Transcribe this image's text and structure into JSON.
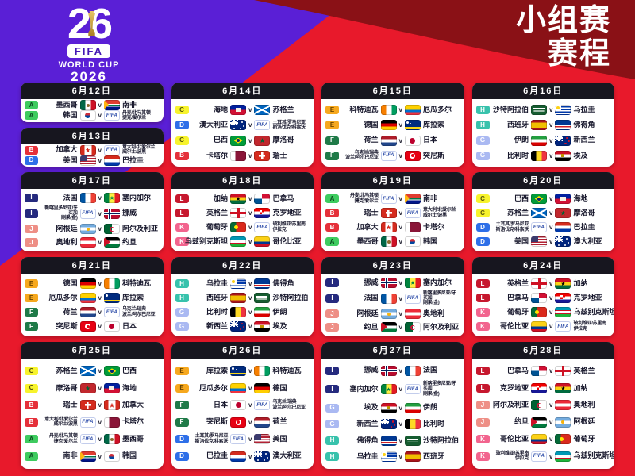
{
  "colors": {
    "red": "#e8192b",
    "purple": "#5a1fd6",
    "maroon": "#8a1116",
    "card_header": "#17161f"
  },
  "header": {
    "title_line1": "小组赛",
    "title_line2": "赛程"
  },
  "logo": {
    "number": "26",
    "fifa": "FIFA",
    "worldcup": "WORLD CUP",
    "year": "2026",
    "trophy_icon": "world-cup-trophy-icon"
  },
  "vs_label": "v",
  "playoff_badge_label": "FIFA",
  "groups": {
    "A": {
      "bg": "#3ecb5f",
      "fg": "#0c4d22"
    },
    "B": {
      "bg": "#e5303a",
      "fg": "#ffffff"
    },
    "C": {
      "bg": "#f7f32c",
      "fg": "#55530a"
    },
    "D": {
      "bg": "#2e6fe8",
      "fg": "#ffffff"
    },
    "E": {
      "bg": "#f6a81e",
      "fg": "#6b4500"
    },
    "F": {
      "bg": "#1f7a48",
      "fg": "#ffffff"
    },
    "G": {
      "bg": "#aab9f2",
      "fg": "#ffffff"
    },
    "H": {
      "bg": "#38c2ac",
      "fg": "#ffffff"
    },
    "I": {
      "bg": "#252a7e",
      "fg": "#ffffff"
    },
    "J": {
      "bg": "#ee8f86",
      "fg": "#ffffff"
    },
    "K": {
      "bg": "#f2648e",
      "fg": "#ffffff"
    },
    "L": {
      "bg": "#c6182e",
      "fg": "#ffffff"
    }
  },
  "cards": [
    {
      "date": "6月12日",
      "matches": [
        {
          "group": "A",
          "home": {
            "name": "墨西哥",
            "flag": "mex"
          },
          "away": {
            "name": "南非",
            "flag": "rsa"
          }
        },
        {
          "group": "A",
          "home": {
            "name": "韩国",
            "flag": "kor"
          },
          "away": {
            "name": "丹麦/北马其顿\n捷克/爱尔兰",
            "flag": "fifa"
          }
        }
      ]
    },
    {
      "date": "6月13日",
      "matches": [
        {
          "group": "B",
          "home": {
            "name": "加拿大",
            "flag": "can"
          },
          "away": {
            "name": "意大利/北爱尔兰\n威尔士/波黑",
            "flag": "fifa"
          }
        },
        {
          "group": "D",
          "home": {
            "name": "美国",
            "flag": "usa"
          },
          "away": {
            "name": "巴拉圭",
            "flag": "par"
          }
        }
      ]
    },
    {
      "date": "6月14日",
      "matches": [
        {
          "group": "C",
          "home": {
            "name": "海地",
            "flag": "hai"
          },
          "away": {
            "name": "苏格兰",
            "flag": "sco"
          }
        },
        {
          "group": "D",
          "home": {
            "name": "澳大利亚",
            "flag": "aus"
          },
          "away": {
            "name": "土耳其/罗马尼亚\n斯洛伐克/科索沃",
            "flag": "fifa"
          }
        },
        {
          "group": "C",
          "home": {
            "name": "巴西",
            "flag": "bra"
          },
          "away": {
            "name": "摩洛哥",
            "flag": "mar"
          }
        },
        {
          "group": "B",
          "home": {
            "name": "卡塔尔",
            "flag": "qat"
          },
          "away": {
            "name": "瑞士",
            "flag": "sui"
          }
        }
      ]
    },
    {
      "date": "6月15日",
      "matches": [
        {
          "group": "E",
          "home": {
            "name": "科特迪瓦",
            "flag": "civ"
          },
          "away": {
            "name": "厄瓜多尔",
            "flag": "ecu"
          }
        },
        {
          "group": "E",
          "home": {
            "name": "德国",
            "flag": "ger"
          },
          "away": {
            "name": "库拉索",
            "flag": "cuw"
          }
        },
        {
          "group": "F",
          "home": {
            "name": "荷兰",
            "flag": "ned"
          },
          "away": {
            "name": "日本",
            "flag": "jpn"
          }
        },
        {
          "group": "F",
          "home": {
            "name": "乌克兰/瑞典\n波兰/阿尔巴尼亚",
            "flag": "fifa"
          },
          "away": {
            "name": "突尼斯",
            "flag": "tun"
          }
        }
      ]
    },
    {
      "date": "6月16日",
      "matches": [
        {
          "group": "H",
          "home": {
            "name": "沙特阿拉伯",
            "flag": "ksa"
          },
          "away": {
            "name": "乌拉圭",
            "flag": "uru"
          }
        },
        {
          "group": "H",
          "home": {
            "name": "西班牙",
            "flag": "esp"
          },
          "away": {
            "name": "佛得角",
            "flag": "cpv"
          }
        },
        {
          "group": "G",
          "home": {
            "name": "伊朗",
            "flag": "irn"
          },
          "away": {
            "name": "新西兰",
            "flag": "nzl"
          }
        },
        {
          "group": "G",
          "home": {
            "name": "比利时",
            "flag": "bel"
          },
          "away": {
            "name": "埃及",
            "flag": "egy"
          }
        }
      ]
    },
    {
      "date": "6月17日",
      "matches": [
        {
          "group": "I",
          "home": {
            "name": "法国",
            "flag": "fra"
          },
          "away": {
            "name": "塞内加尔",
            "flag": "sen"
          }
        },
        {
          "group": "I",
          "home": {
            "name": "新喀里多尼亚/牙买加\n刚果(金)",
            "flag": "fifa"
          },
          "away": {
            "name": "挪威",
            "flag": "nor"
          }
        },
        {
          "group": "J",
          "home": {
            "name": "阿根廷",
            "flag": "arg"
          },
          "away": {
            "name": "阿尔及利亚",
            "flag": "alg"
          }
        },
        {
          "group": "J",
          "home": {
            "name": "奥地利",
            "flag": "aut"
          },
          "away": {
            "name": "约旦",
            "flag": "jor"
          }
        }
      ]
    },
    {
      "date": "6月18日",
      "matches": [
        {
          "group": "L",
          "home": {
            "name": "加纳",
            "flag": "gha"
          },
          "away": {
            "name": "巴拿马",
            "flag": "pan"
          }
        },
        {
          "group": "L",
          "home": {
            "name": "英格兰",
            "flag": "eng"
          },
          "away": {
            "name": "克罗地亚",
            "flag": "cro"
          }
        },
        {
          "group": "K",
          "home": {
            "name": "葡萄牙",
            "flag": "por"
          },
          "away": {
            "name": "玻利维亚/苏里南\n伊拉克",
            "flag": "fifa"
          }
        },
        {
          "group": "K",
          "home": {
            "name": "乌兹别克斯坦",
            "flag": "uzb"
          },
          "away": {
            "name": "哥伦比亚",
            "flag": "col"
          }
        }
      ]
    },
    {
      "date": "6月19日",
      "matches": [
        {
          "group": "A",
          "home": {
            "name": "丹麦/北马其顿\n捷克/爱尔兰",
            "flag": "fifa"
          },
          "away": {
            "name": "南非",
            "flag": "rsa"
          }
        },
        {
          "group": "B",
          "home": {
            "name": "瑞士",
            "flag": "sui"
          },
          "away": {
            "name": "意大利/北爱尔兰\n威尔士/波黑",
            "flag": "fifa"
          }
        },
        {
          "group": "B",
          "home": {
            "name": "加拿大",
            "flag": "can"
          },
          "away": {
            "name": "卡塔尔",
            "flag": "qat"
          }
        },
        {
          "group": "A",
          "home": {
            "name": "墨西哥",
            "flag": "mex"
          },
          "away": {
            "name": "韩国",
            "flag": "kor"
          }
        }
      ]
    },
    {
      "date": "6月20日",
      "matches": [
        {
          "group": "C",
          "home": {
            "name": "巴西",
            "flag": "bra"
          },
          "away": {
            "name": "海地",
            "flag": "hai"
          }
        },
        {
          "group": "C",
          "home": {
            "name": "苏格兰",
            "flag": "sco"
          },
          "away": {
            "name": "摩洛哥",
            "flag": "mar"
          }
        },
        {
          "group": "D",
          "home": {
            "name": "土耳其/罗马尼亚\n斯洛伐克/科索沃",
            "flag": "fifa"
          },
          "away": {
            "name": "巴拉圭",
            "flag": "par"
          }
        },
        {
          "group": "D",
          "home": {
            "name": "美国",
            "flag": "usa"
          },
          "away": {
            "name": "澳大利亚",
            "flag": "aus"
          }
        }
      ]
    },
    {
      "date": "6月21日",
      "matches": [
        {
          "group": "E",
          "home": {
            "name": "德国",
            "flag": "ger"
          },
          "away": {
            "name": "科特迪瓦",
            "flag": "civ"
          }
        },
        {
          "group": "E",
          "home": {
            "name": "厄瓜多尔",
            "flag": "ecu"
          },
          "away": {
            "name": "库拉索",
            "flag": "cuw"
          }
        },
        {
          "group": "F",
          "home": {
            "name": "荷兰",
            "flag": "ned"
          },
          "away": {
            "name": "乌克兰/瑞典\n波兰/阿尔巴尼亚",
            "flag": "fifa"
          }
        },
        {
          "group": "F",
          "home": {
            "name": "突尼斯",
            "flag": "tun"
          },
          "away": {
            "name": "日本",
            "flag": "jpn"
          }
        }
      ]
    },
    {
      "date": "6月22日",
      "matches": [
        {
          "group": "H",
          "home": {
            "name": "乌拉圭",
            "flag": "uru"
          },
          "away": {
            "name": "佛得角",
            "flag": "cpv"
          }
        },
        {
          "group": "H",
          "home": {
            "name": "西班牙",
            "flag": "esp"
          },
          "away": {
            "name": "沙特阿拉伯",
            "flag": "ksa"
          }
        },
        {
          "group": "G",
          "home": {
            "name": "比利时",
            "flag": "bel"
          },
          "away": {
            "name": "伊朗",
            "flag": "irn"
          }
        },
        {
          "group": "G",
          "home": {
            "name": "新西兰",
            "flag": "nzl"
          },
          "away": {
            "name": "埃及",
            "flag": "egy"
          }
        }
      ]
    },
    {
      "date": "6月23日",
      "matches": [
        {
          "group": "I",
          "home": {
            "name": "挪威",
            "flag": "nor"
          },
          "away": {
            "name": "塞内加尔",
            "flag": "sen"
          }
        },
        {
          "group": "I",
          "home": {
            "name": "法国",
            "flag": "fra"
          },
          "away": {
            "name": "新喀里多尼亚/牙买加\n刚果(金)",
            "flag": "fifa"
          }
        },
        {
          "group": "J",
          "home": {
            "name": "阿根廷",
            "flag": "arg"
          },
          "away": {
            "name": "奥地利",
            "flag": "aut"
          }
        },
        {
          "group": "J",
          "home": {
            "name": "约旦",
            "flag": "jor"
          },
          "away": {
            "name": "阿尔及利亚",
            "flag": "alg"
          }
        }
      ]
    },
    {
      "date": "6月24日",
      "matches": [
        {
          "group": "L",
          "home": {
            "name": "英格兰",
            "flag": "eng"
          },
          "away": {
            "name": "加纳",
            "flag": "gha"
          }
        },
        {
          "group": "L",
          "home": {
            "name": "巴拿马",
            "flag": "pan"
          },
          "away": {
            "name": "克罗地亚",
            "flag": "cro"
          }
        },
        {
          "group": "K",
          "home": {
            "name": "葡萄牙",
            "flag": "por"
          },
          "away": {
            "name": "乌兹别克斯坦",
            "flag": "uzb"
          }
        },
        {
          "group": "K",
          "home": {
            "name": "哥伦比亚",
            "flag": "col"
          },
          "away": {
            "name": "玻利维亚/苏里南\n伊拉克",
            "flag": "fifa"
          }
        }
      ]
    },
    {
      "date": "6月25日",
      "matches": [
        {
          "group": "C",
          "home": {
            "name": "苏格兰",
            "flag": "sco"
          },
          "away": {
            "name": "巴西",
            "flag": "bra"
          }
        },
        {
          "group": "C",
          "home": {
            "name": "摩洛哥",
            "flag": "mar"
          },
          "away": {
            "name": "海地",
            "flag": "hai"
          }
        },
        {
          "group": "B",
          "home": {
            "name": "瑞士",
            "flag": "sui"
          },
          "away": {
            "name": "加拿大",
            "flag": "can"
          }
        },
        {
          "group": "B",
          "home": {
            "name": "意大利/北爱尔兰\n威尔士/波黑",
            "flag": "fifa"
          },
          "away": {
            "name": "卡塔尔",
            "flag": "qat"
          }
        },
        {
          "group": "A",
          "home": {
            "name": "丹麦/北马其顿\n捷克/爱尔兰",
            "flag": "fifa"
          },
          "away": {
            "name": "墨西哥",
            "flag": "mex"
          }
        },
        {
          "group": "A",
          "home": {
            "name": "南非",
            "flag": "rsa"
          },
          "away": {
            "name": "韩国",
            "flag": "kor"
          }
        }
      ]
    },
    {
      "date": "6月26日",
      "matches": [
        {
          "group": "E",
          "home": {
            "name": "库拉索",
            "flag": "cuw"
          },
          "away": {
            "name": "科特迪瓦",
            "flag": "civ"
          }
        },
        {
          "group": "E",
          "home": {
            "name": "厄瓜多尔",
            "flag": "ecu"
          },
          "away": {
            "name": "德国",
            "flag": "ger"
          }
        },
        {
          "group": "F",
          "home": {
            "name": "日本",
            "flag": "jpn"
          },
          "away": {
            "name": "乌克兰/瑞典\n波兰/阿尔巴尼亚",
            "flag": "fifa"
          }
        },
        {
          "group": "F",
          "home": {
            "name": "突尼斯",
            "flag": "tun"
          },
          "away": {
            "name": "荷兰",
            "flag": "ned"
          }
        },
        {
          "group": "D",
          "home": {
            "name": "土耳其/罗马尼亚\n斯洛伐克/科索沃",
            "flag": "fifa"
          },
          "away": {
            "name": "美国",
            "flag": "usa"
          }
        },
        {
          "group": "D",
          "home": {
            "name": "巴拉圭",
            "flag": "par"
          },
          "away": {
            "name": "澳大利亚",
            "flag": "aus"
          }
        }
      ]
    },
    {
      "date": "6月27日",
      "matches": [
        {
          "group": "I",
          "home": {
            "name": "挪威",
            "flag": "nor"
          },
          "away": {
            "name": "法国",
            "flag": "fra"
          }
        },
        {
          "group": "I",
          "home": {
            "name": "塞内加尔",
            "flag": "sen"
          },
          "away": {
            "name": "新喀里多尼亚/牙买加\n刚果(金)",
            "flag": "fifa"
          }
        },
        {
          "group": "G",
          "home": {
            "name": "埃及",
            "flag": "egy"
          },
          "away": {
            "name": "伊朗",
            "flag": "irn"
          }
        },
        {
          "group": "G",
          "home": {
            "name": "新西兰",
            "flag": "nzl"
          },
          "away": {
            "name": "比利时",
            "flag": "bel"
          }
        },
        {
          "group": "H",
          "home": {
            "name": "佛得角",
            "flag": "cpv"
          },
          "away": {
            "name": "沙特阿拉伯",
            "flag": "ksa"
          }
        },
        {
          "group": "H",
          "home": {
            "name": "乌拉圭",
            "flag": "uru"
          },
          "away": {
            "name": "西班牙",
            "flag": "esp"
          }
        }
      ]
    },
    {
      "date": "6月28日",
      "matches": [
        {
          "group": "L",
          "home": {
            "name": "巴拿马",
            "flag": "pan"
          },
          "away": {
            "name": "英格兰",
            "flag": "eng"
          }
        },
        {
          "group": "L",
          "home": {
            "name": "克罗地亚",
            "flag": "cro"
          },
          "away": {
            "name": "加纳",
            "flag": "gha"
          }
        },
        {
          "group": "J",
          "home": {
            "name": "阿尔及利亚",
            "flag": "alg"
          },
          "away": {
            "name": "奥地利",
            "flag": "aut"
          }
        },
        {
          "group": "J",
          "home": {
            "name": "约旦",
            "flag": "jor"
          },
          "away": {
            "name": "阿根廷",
            "flag": "arg"
          }
        },
        {
          "group": "K",
          "home": {
            "name": "哥伦比亚",
            "flag": "col"
          },
          "away": {
            "name": "葡萄牙",
            "flag": "por"
          }
        },
        {
          "group": "K",
          "home": {
            "name": "玻利维亚/苏里南\n伊拉克",
            "flag": "fifa"
          },
          "away": {
            "name": "乌兹别克斯坦",
            "flag": "uzb"
          }
        }
      ]
    }
  ]
}
